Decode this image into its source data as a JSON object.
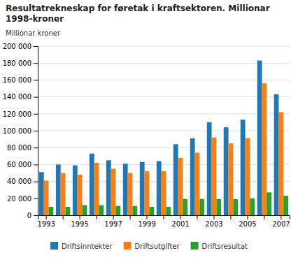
{
  "chart_data": {
    "type": "bar",
    "title": "Resultatrekneskap for føretak i kraftsektoren. Millionar\n1998-kroner",
    "ylabel": "Millionar kroner",
    "categories": [
      "1993",
      null,
      "1995",
      null,
      "1997",
      null,
      "1999",
      null,
      "2001",
      null,
      "2003",
      null,
      "2005",
      null,
      "2007"
    ],
    "series": [
      {
        "name": "Driftsinntekter",
        "values": [
          51000,
          60000,
          59000,
          73000,
          65000,
          61000,
          63000,
          64000,
          84000,
          91000,
          110000,
          104000,
          113000,
          183000,
          143000
        ]
      },
      {
        "name": "Driftsutgifter",
        "values": [
          41000,
          50000,
          48000,
          62000,
          55000,
          50000,
          52000,
          52000,
          68000,
          74000,
          92000,
          85000,
          91000,
          156000,
          122000
        ]
      },
      {
        "name": "Driftsresultat",
        "values": [
          10000,
          10000,
          12000,
          12000,
          11000,
          11000,
          10000,
          10000,
          19000,
          19000,
          19000,
          19000,
          20000,
          27000,
          23000
        ]
      }
    ],
    "ylim": [
      0,
      200000
    ],
    "yticks": [
      0,
      {
        "value": 20000,
        "label": "20 000"
      },
      {
        "value": 40000,
        "label": "40 000"
      },
      {
        "value": 60000,
        "label": "60 000"
      },
      {
        "value": 80000,
        "label": "80 000"
      },
      {
        "value": 100000,
        "label": "100 000"
      },
      {
        "value": 120000,
        "label": "120 000"
      },
      {
        "value": 140000,
        "label": "140 000"
      },
      {
        "value": 160000,
        "label": "160 000"
      },
      {
        "value": 180000,
        "label": "180 000"
      },
      {
        "value": 200000,
        "label": "200 000"
      }
    ],
    "grid": true,
    "legend": "bottom"
  }
}
